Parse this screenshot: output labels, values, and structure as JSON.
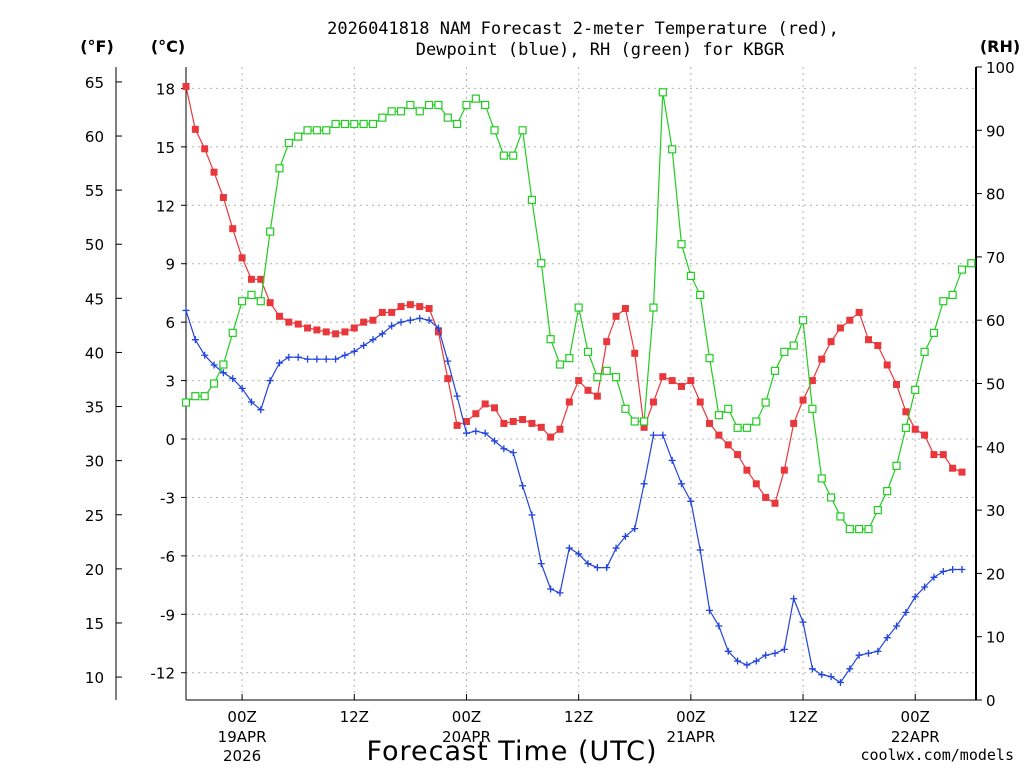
{
  "chart_data": {
    "type": "line",
    "title_line1": "2026041818 NAM Forecast 2-meter Temperature (red),",
    "title_line2": "Dewpoint (blue), RH (green) for KBGR",
    "units": {
      "left_f": "(°F)",
      "left_c": "(°C)",
      "right_rh": "(RH)"
    },
    "xlabel": "Forecast Time (UTC)",
    "credit": "coolwx.com/models",
    "colors": {
      "temperature": "#e8383c",
      "dewpoint": "#2244dd",
      "rh": "#22cc22",
      "axis": "#000000",
      "grid": "#b4b4b4"
    },
    "xlim_hours": [
      -6,
      78.5
    ],
    "ylim_c": [
      -13.4,
      19.1
    ],
    "rh_lim": [
      0,
      100
    ],
    "fahrenheit_ticks": [
      "65",
      "60",
      "55",
      "50",
      "45",
      "40",
      "35",
      "30",
      "25",
      "20",
      "15",
      "10"
    ],
    "celsius_ticks": [
      "18",
      "15",
      "12",
      "9",
      "6",
      "3",
      "0",
      "-3",
      "-6",
      "-9",
      "-12"
    ],
    "rh_ticks": [
      "100",
      "90",
      "80",
      "70",
      "60",
      "50",
      "40",
      "30",
      "20",
      "10",
      "0"
    ],
    "x_ticks": [
      {
        "hour": 0,
        "label": "00Z",
        "date": "19APR",
        "year": "2026"
      },
      {
        "hour": 12,
        "label": "12Z",
        "date": "",
        "year": ""
      },
      {
        "hour": 24,
        "label": "00Z",
        "date": "20APR",
        "year": ""
      },
      {
        "hour": 36,
        "label": "12Z",
        "date": "",
        "year": ""
      },
      {
        "hour": 48,
        "label": "00Z",
        "date": "21APR",
        "year": ""
      },
      {
        "hour": 60,
        "label": "12Z",
        "date": "",
        "year": ""
      },
      {
        "hour": 72,
        "label": "00Z",
        "date": "22APR",
        "year": ""
      }
    ],
    "series": [
      {
        "name": "Temperature",
        "unit": "C",
        "color": "#e8383c",
        "marker": "filled-square",
        "values": [
          [
            -6,
            18.1
          ],
          [
            -5,
            15.9
          ],
          [
            -4,
            14.9
          ],
          [
            -3,
            13.7
          ],
          [
            -2,
            12.4
          ],
          [
            -1,
            10.8
          ],
          [
            0,
            9.3
          ],
          [
            1,
            8.2
          ],
          [
            2,
            8.2
          ],
          [
            3,
            7.0
          ],
          [
            4,
            6.3
          ],
          [
            5,
            6.0
          ],
          [
            6,
            5.9
          ],
          [
            7,
            5.7
          ],
          [
            8,
            5.6
          ],
          [
            9,
            5.5
          ],
          [
            10,
            5.4
          ],
          [
            11,
            5.5
          ],
          [
            12,
            5.7
          ],
          [
            13,
            6.0
          ],
          [
            14,
            6.1
          ],
          [
            15,
            6.5
          ],
          [
            16,
            6.5
          ],
          [
            17,
            6.8
          ],
          [
            18,
            6.9
          ],
          [
            19,
            6.8
          ],
          [
            20,
            6.7
          ],
          [
            21,
            5.5
          ],
          [
            22,
            3.1
          ],
          [
            23,
            0.7
          ],
          [
            24,
            0.9
          ],
          [
            25,
            1.3
          ],
          [
            26,
            1.8
          ],
          [
            27,
            1.6
          ],
          [
            28,
            0.8
          ],
          [
            29,
            0.9
          ],
          [
            30,
            1.0
          ],
          [
            31,
            0.8
          ],
          [
            32,
            0.6
          ],
          [
            33,
            0.1
          ],
          [
            34,
            0.5
          ],
          [
            35,
            1.9
          ],
          [
            36,
            3.0
          ],
          [
            37,
            2.5
          ],
          [
            38,
            2.2
          ],
          [
            39,
            5.0
          ],
          [
            40,
            6.3
          ],
          [
            41,
            6.7
          ],
          [
            42,
            4.4
          ],
          [
            43,
            0.6
          ],
          [
            44,
            1.9
          ],
          [
            45,
            3.2
          ],
          [
            46,
            3.0
          ],
          [
            47,
            2.7
          ],
          [
            48,
            3.0
          ],
          [
            49,
            1.9
          ],
          [
            50,
            0.8
          ],
          [
            51,
            0.2
          ],
          [
            52,
            -0.3
          ],
          [
            53,
            -0.8
          ],
          [
            54,
            -1.6
          ],
          [
            55,
            -2.3
          ],
          [
            56,
            -3.0
          ],
          [
            57,
            -3.3
          ],
          [
            58,
            -1.6
          ],
          [
            59,
            0.8
          ],
          [
            60,
            2.0
          ],
          [
            61,
            3.0
          ],
          [
            62,
            4.1
          ],
          [
            63,
            5.0
          ],
          [
            64,
            5.7
          ],
          [
            65,
            6.1
          ],
          [
            66,
            6.5
          ],
          [
            67,
            5.1
          ],
          [
            68,
            4.8
          ],
          [
            69,
            3.8
          ],
          [
            70,
            2.8
          ],
          [
            71,
            1.4
          ],
          [
            72,
            0.5
          ],
          [
            73,
            0.2
          ],
          [
            74,
            -0.8
          ],
          [
            75,
            -0.8
          ],
          [
            76,
            -1.5
          ],
          [
            77,
            -1.7
          ]
        ]
      },
      {
        "name": "Dewpoint",
        "unit": "C",
        "color": "#2244dd",
        "marker": "plus",
        "values": [
          [
            -6,
            6.6
          ],
          [
            -5,
            5.1
          ],
          [
            -4,
            4.3
          ],
          [
            -3,
            3.8
          ],
          [
            -2,
            3.4
          ],
          [
            -1,
            3.1
          ],
          [
            0,
            2.6
          ],
          [
            1,
            1.9
          ],
          [
            2,
            1.5
          ],
          [
            3,
            3.0
          ],
          [
            4,
            3.9
          ],
          [
            5,
            4.2
          ],
          [
            6,
            4.2
          ],
          [
            7,
            4.1
          ],
          [
            8,
            4.1
          ],
          [
            9,
            4.1
          ],
          [
            10,
            4.1
          ],
          [
            11,
            4.3
          ],
          [
            12,
            4.5
          ],
          [
            13,
            4.8
          ],
          [
            14,
            5.1
          ],
          [
            15,
            5.4
          ],
          [
            16,
            5.8
          ],
          [
            17,
            6.0
          ],
          [
            18,
            6.1
          ],
          [
            19,
            6.2
          ],
          [
            20,
            6.1
          ],
          [
            21,
            5.7
          ],
          [
            22,
            4.0
          ],
          [
            23,
            2.2
          ],
          [
            24,
            0.3
          ],
          [
            25,
            0.4
          ],
          [
            26,
            0.3
          ],
          [
            27,
            -0.1
          ],
          [
            28,
            -0.5
          ],
          [
            29,
            -0.7
          ],
          [
            30,
            -2.4
          ],
          [
            31,
            -3.9
          ],
          [
            32,
            -6.4
          ],
          [
            33,
            -7.7
          ],
          [
            34,
            -7.9
          ],
          [
            35,
            -5.6
          ],
          [
            36,
            -5.9
          ],
          [
            37,
            -6.4
          ],
          [
            38,
            -6.6
          ],
          [
            39,
            -6.6
          ],
          [
            40,
            -5.6
          ],
          [
            41,
            -5.0
          ],
          [
            42,
            -4.6
          ],
          [
            43,
            -2.3
          ],
          [
            44,
            0.2
          ],
          [
            45,
            0.2
          ],
          [
            46,
            -1.1
          ],
          [
            47,
            -2.3
          ],
          [
            48,
            -3.2
          ],
          [
            49,
            -5.7
          ],
          [
            50,
            -8.8
          ],
          [
            51,
            -9.6
          ],
          [
            52,
            -10.9
          ],
          [
            53,
            -11.4
          ],
          [
            54,
            -11.6
          ],
          [
            55,
            -11.4
          ],
          [
            56,
            -11.1
          ],
          [
            57,
            -11.0
          ],
          [
            58,
            -10.8
          ],
          [
            59,
            -8.2
          ],
          [
            60,
            -9.4
          ],
          [
            61,
            -11.8
          ],
          [
            62,
            -12.1
          ],
          [
            63,
            -12.2
          ],
          [
            64,
            -12.5
          ],
          [
            65,
            -11.8
          ],
          [
            66,
            -11.1
          ],
          [
            67,
            -11.0
          ],
          [
            68,
            -10.9
          ],
          [
            69,
            -10.2
          ],
          [
            70,
            -9.6
          ],
          [
            71,
            -8.9
          ],
          [
            72,
            -8.1
          ],
          [
            73,
            -7.6
          ],
          [
            74,
            -7.1
          ],
          [
            75,
            -6.8
          ],
          [
            76,
            -6.7
          ],
          [
            77,
            -6.7
          ]
        ]
      },
      {
        "name": "RH",
        "unit": "%",
        "color": "#22cc22",
        "marker": "open-square",
        "values": [
          [
            -6,
            47
          ],
          [
            -5,
            48
          ],
          [
            -4,
            48
          ],
          [
            -3,
            50
          ],
          [
            -2,
            53
          ],
          [
            -1,
            58
          ],
          [
            0,
            63
          ],
          [
            1,
            64
          ],
          [
            2,
            63
          ],
          [
            3,
            74
          ],
          [
            4,
            84
          ],
          [
            5,
            88
          ],
          [
            6,
            89
          ],
          [
            7,
            90
          ],
          [
            8,
            90
          ],
          [
            9,
            90
          ],
          [
            10,
            91
          ],
          [
            11,
            91
          ],
          [
            12,
            91
          ],
          [
            13,
            91
          ],
          [
            14,
            91
          ],
          [
            15,
            92
          ],
          [
            16,
            93
          ],
          [
            17,
            93
          ],
          [
            18,
            94
          ],
          [
            19,
            93
          ],
          [
            20,
            94
          ],
          [
            21,
            94
          ],
          [
            22,
            92
          ],
          [
            23,
            91
          ],
          [
            24,
            94
          ],
          [
            25,
            95
          ],
          [
            26,
            94
          ],
          [
            27,
            90
          ],
          [
            28,
            86
          ],
          [
            29,
            86
          ],
          [
            30,
            90
          ],
          [
            31,
            79
          ],
          [
            32,
            69
          ],
          [
            33,
            57
          ],
          [
            34,
            53
          ],
          [
            35,
            54
          ],
          [
            36,
            62
          ],
          [
            37,
            55
          ],
          [
            38,
            51
          ],
          [
            39,
            52
          ],
          [
            40,
            51
          ],
          [
            41,
            46
          ],
          [
            42,
            44
          ],
          [
            43,
            44
          ],
          [
            44,
            62
          ],
          [
            45,
            96
          ],
          [
            46,
            87
          ],
          [
            47,
            72
          ],
          [
            48,
            67
          ],
          [
            49,
            64
          ],
          [
            50,
            54
          ],
          [
            51,
            45
          ],
          [
            52,
            46
          ],
          [
            53,
            43
          ],
          [
            54,
            43
          ],
          [
            55,
            44
          ],
          [
            56,
            47
          ],
          [
            57,
            52
          ],
          [
            58,
            55
          ],
          [
            59,
            56
          ],
          [
            60,
            60
          ],
          [
            61,
            46
          ],
          [
            62,
            35
          ],
          [
            63,
            32
          ],
          [
            64,
            29
          ],
          [
            65,
            27
          ],
          [
            66,
            27
          ],
          [
            67,
            27
          ],
          [
            68,
            30
          ],
          [
            69,
            33
          ],
          [
            70,
            37
          ],
          [
            71,
            43
          ],
          [
            72,
            49
          ],
          [
            73,
            55
          ],
          [
            74,
            58
          ],
          [
            75,
            63
          ],
          [
            76,
            64
          ],
          [
            77,
            68
          ],
          [
            78,
            69
          ]
        ]
      }
    ]
  }
}
